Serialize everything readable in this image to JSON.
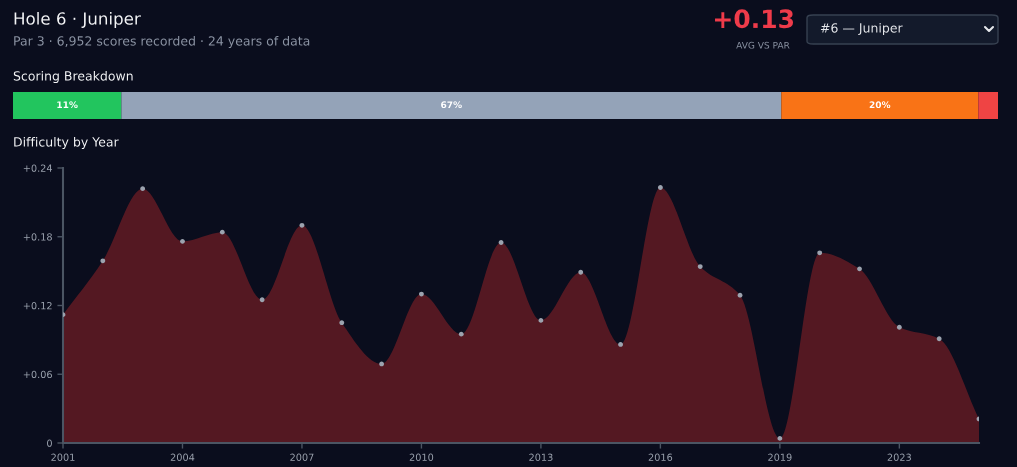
{
  "chart_data": [
    {
      "type": "other",
      "title": "Hole 6 · Juniper",
      "subtitle": "Par 3 · 6,952 scores recorded · 24 years of data",
      "annotations": [
        "+0.13",
        "AVG VS PAR",
        "#6 — Juniper"
      ]
    },
    {
      "type": "bar",
      "title": "Scoring Breakdown",
      "orientation": "horizontal",
      "stacked": true,
      "categories": [
        null
      ],
      "series": [
        {
          "color": "#22c55e",
          "values": [
            11
          ],
          "value_labels": [
            "11%"
          ]
        },
        {
          "color": "#94a3b8",
          "values": [
            67
          ],
          "value_labels": [
            "67%"
          ]
        },
        {
          "color": "#f97316",
          "values": [
            20
          ],
          "value_labels": [
            "20%"
          ]
        },
        {
          "color": "#ef4444",
          "values": [
            2
          ],
          "value_labels": [
            null
          ]
        }
      ]
    },
    {
      "type": "area",
      "title": "Difficulty by Year",
      "marker": "circle",
      "grid": false,
      "categories": [
        "2001",
        null,
        null,
        "2004",
        null,
        null,
        "2007",
        null,
        null,
        "2010",
        null,
        null,
        "2013",
        null,
        null,
        "2016",
        null,
        null,
        "2019",
        null,
        null,
        "2023",
        null,
        null
      ],
      "ylim": [
        0,
        0.24
      ],
      "yticks": [
        0,
        {
          "value": 0.06,
          "label": "+0.06"
        },
        {
          "value": 0.12,
          "label": "+0.12"
        },
        {
          "value": 0.18,
          "label": "+0.18"
        },
        {
          "value": 0.24,
          "label": "+0.24"
        }
      ],
      "series": [
        {
          "color": "#5c1a24",
          "values": [
            0.112,
            0.159,
            0.222,
            0.176,
            0.184,
            0.125,
            0.19,
            0.105,
            0.069,
            0.13,
            0.095,
            0.175,
            0.107,
            0.149,
            0.086,
            0.223,
            0.154,
            0.129,
            0.004,
            0.166,
            0.152,
            0.101,
            0.091,
            0.021
          ]
        }
      ]
    }
  ]
}
